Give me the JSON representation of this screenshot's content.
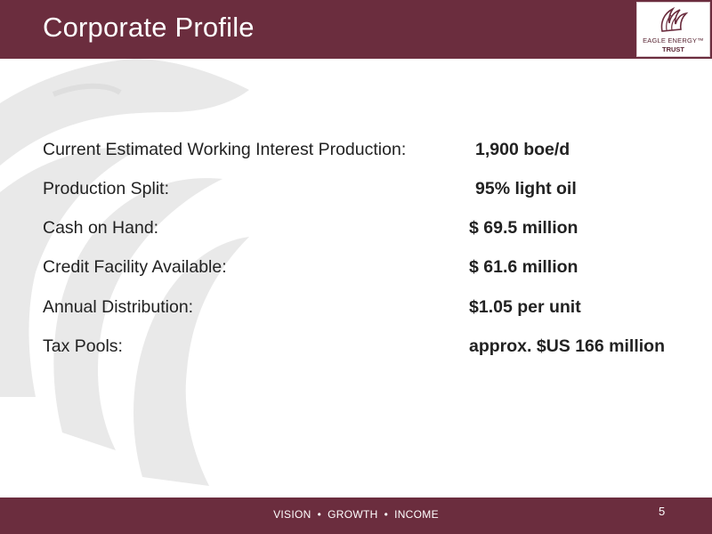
{
  "slide": {
    "title": "Corporate Profile",
    "page_number": "5",
    "colors": {
      "brand": "#6b2d3e",
      "text": "#222222",
      "background": "#ffffff"
    }
  },
  "logo": {
    "icon": "eagle-head-icon",
    "line1": "EAGLE ENERGY™",
    "line2": "TRUST"
  },
  "watermark": {
    "icon": "eagle-wing-watermark"
  },
  "profile": [
    {
      "label": "Current Estimated Working Interest Production:",
      "value": "1,900 boe/d"
    },
    {
      "label": "Production Split:",
      "value": "95% light oil"
    },
    {
      "label": "Cash on Hand:",
      "value": "$ 69.5 million"
    },
    {
      "label": "Credit Facility Available:",
      "value": "$ 61.6 million"
    },
    {
      "label": "Annual Distribution:",
      "value": "$1.05 per unit"
    },
    {
      "label": "Tax Pools:",
      "value": "approx. $US 166 million"
    }
  ],
  "footer": {
    "tagline": [
      "VISION",
      "GROWTH",
      "INCOME"
    ],
    "separator": "•"
  }
}
